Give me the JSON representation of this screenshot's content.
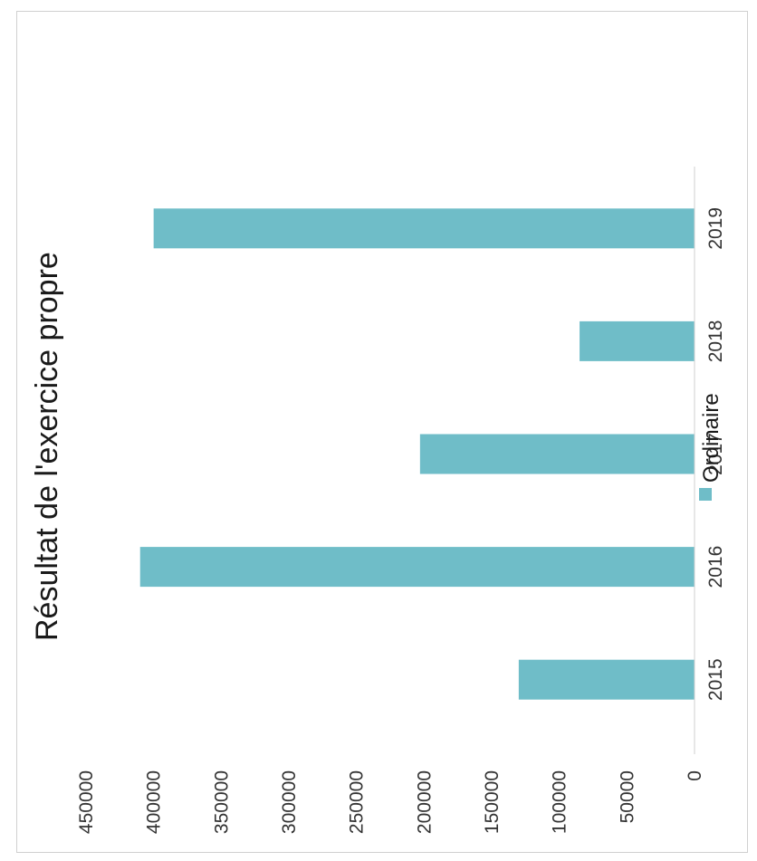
{
  "chart_data": {
    "type": "bar",
    "title": "Résultat de l'exercice propre",
    "categories": [
      "2015",
      "2016",
      "2017",
      "2018",
      "2019"
    ],
    "series": [
      {
        "name": "Ordinaire",
        "values": [
          130000,
          410000,
          203000,
          85000,
          400000
        ]
      }
    ],
    "y_ticks": [
      "0",
      "50000",
      "100000",
      "150000",
      "200000",
      "250000",
      "300000",
      "350000",
      "400000",
      "450000"
    ],
    "ylim": [
      0,
      450000
    ],
    "grid": false,
    "legend_position": "bottom",
    "orientation": "rotated 90° counter-clockwise",
    "bar_color": "#6fbdc8"
  }
}
